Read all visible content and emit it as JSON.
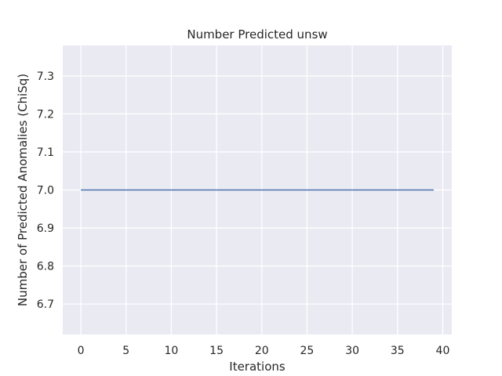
{
  "chart_data": {
    "type": "line",
    "title": "Number Predicted unsw",
    "xlabel": "Iterations",
    "ylabel": "Number of Predicted Anomalies (ChiSq)",
    "xlim": [
      -2,
      41
    ],
    "ylim": [
      6.62,
      7.38
    ],
    "xticks": [
      0,
      5,
      10,
      15,
      20,
      25,
      30,
      35,
      40
    ],
    "yticks": [
      6.7,
      6.8,
      6.9,
      7.0,
      7.1,
      7.2,
      7.3
    ],
    "grid": true,
    "style": "seaborn-darkgrid",
    "series": [
      {
        "color": "#4c72b0",
        "x": [
          0,
          1,
          2,
          3,
          4,
          5,
          6,
          7,
          8,
          9,
          10,
          11,
          12,
          13,
          14,
          15,
          16,
          17,
          18,
          19,
          20,
          21,
          22,
          23,
          24,
          25,
          26,
          27,
          28,
          29,
          30,
          31,
          32,
          33,
          34,
          35,
          36,
          37,
          38,
          39
        ],
        "y": [
          7,
          7,
          7,
          7,
          7,
          7,
          7,
          7,
          7,
          7,
          7,
          7,
          7,
          7,
          7,
          7,
          7,
          7,
          7,
          7,
          7,
          7,
          7,
          7,
          7,
          7,
          7,
          7,
          7,
          7,
          7,
          7,
          7,
          7,
          7,
          7,
          7,
          7,
          7,
          7
        ]
      }
    ]
  }
}
